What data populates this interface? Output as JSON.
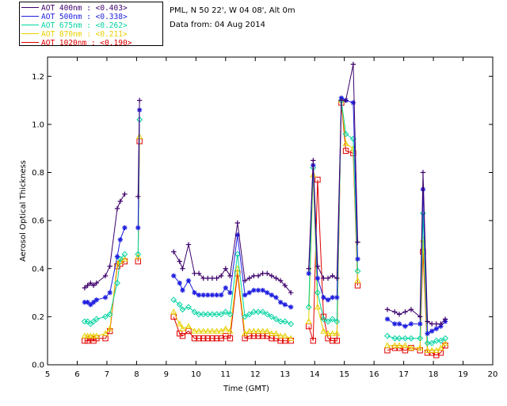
{
  "site_info": {
    "line1": "PML, N 50 22', W 04 08', Alt 0m",
    "line2": "Data from: 04 Aug 2014"
  },
  "legend": [
    {
      "label": "AOT  400nm : <0.403>",
      "color": "#3d006b"
    },
    {
      "label": "AOT  500nm : <0.338>",
      "color": "#1e1ee0"
    },
    {
      "label": "AOT  675nm : <0.262>",
      "color": "#00d3a0"
    },
    {
      "label": "AOT  870nm : <0.211>",
      "color": "#e6d000"
    },
    {
      "label": "AOT 1020nm : <0.190>",
      "color": "#e00000"
    }
  ],
  "chart_data": {
    "type": "scatter",
    "xlabel": "Time (GMT)",
    "ylabel": "Aerosol Optical Thickness",
    "xlim": [
      5,
      20
    ],
    "ylim": [
      0,
      1.28
    ],
    "xticks": [
      "5",
      "6",
      "7",
      "8",
      "9",
      "10",
      "11",
      "12",
      "13",
      "14",
      "15",
      "16",
      "17",
      "18",
      "19",
      "20"
    ],
    "yticks": [
      "0.0",
      "0.2",
      "0.4",
      "0.6",
      "0.8",
      "1.0",
      "1.2"
    ],
    "x": [
      6.25,
      6.35,
      6.45,
      6.55,
      6.65,
      6.95,
      7.1,
      7.35,
      7.45,
      7.6,
      8.05,
      8.1,
      9.25,
      9.45,
      9.55,
      9.75,
      9.95,
      10.1,
      10.25,
      10.4,
      10.55,
      10.7,
      10.85,
      11.0,
      11.15,
      11.4,
      11.65,
      11.8,
      11.95,
      12.1,
      12.25,
      12.4,
      12.55,
      12.7,
      12.85,
      13.0,
      13.2,
      13.8,
      13.95,
      14.1,
      14.3,
      14.45,
      14.6,
      14.75,
      14.9,
      15.05,
      15.3,
      15.45,
      16.45,
      16.7,
      16.85,
      17.05,
      17.25,
      17.55,
      17.65,
      17.8,
      17.95,
      18.1,
      18.25,
      18.4
    ],
    "series": [
      {
        "name": "AOT 400nm",
        "color": "#3d006b",
        "marker": "plus",
        "values": [
          0.32,
          0.33,
          0.34,
          0.33,
          0.34,
          0.37,
          0.41,
          0.65,
          0.68,
          0.71,
          0.7,
          1.1,
          0.47,
          0.43,
          0.4,
          0.5,
          0.38,
          0.38,
          0.36,
          0.36,
          0.36,
          0.36,
          0.37,
          0.4,
          0.37,
          0.59,
          0.35,
          0.36,
          0.37,
          0.37,
          0.38,
          0.38,
          0.37,
          0.36,
          0.35,
          0.33,
          0.3,
          0.4,
          0.85,
          0.41,
          0.36,
          0.36,
          0.37,
          0.36,
          1.1,
          1.1,
          1.25,
          0.51,
          0.23,
          0.22,
          0.21,
          0.22,
          0.23,
          0.2,
          0.8,
          0.18,
          0.17,
          0.17,
          0.17,
          0.19
        ]
      },
      {
        "name": "AOT 500nm",
        "color": "#1e1ee0",
        "marker": "star",
        "values": [
          0.26,
          0.26,
          0.25,
          0.26,
          0.27,
          0.28,
          0.3,
          0.45,
          0.52,
          0.57,
          0.57,
          1.06,
          0.37,
          0.34,
          0.31,
          0.35,
          0.3,
          0.29,
          0.29,
          0.29,
          0.29,
          0.29,
          0.29,
          0.32,
          0.3,
          0.54,
          0.29,
          0.3,
          0.31,
          0.31,
          0.31,
          0.3,
          0.29,
          0.28,
          0.26,
          0.25,
          0.24,
          0.38,
          0.83,
          0.36,
          0.28,
          0.27,
          0.28,
          0.28,
          1.11,
          1.1,
          1.09,
          0.44,
          0.19,
          0.17,
          0.17,
          0.16,
          0.17,
          0.17,
          0.73,
          0.13,
          0.14,
          0.15,
          0.16,
          0.18
        ]
      },
      {
        "name": "AOT 675nm",
        "color": "#00d3a0",
        "marker": "diamond",
        "values": [
          0.18,
          0.18,
          0.17,
          0.18,
          0.19,
          0.2,
          0.21,
          0.34,
          0.44,
          0.46,
          0.46,
          1.02,
          0.27,
          0.25,
          0.23,
          0.24,
          0.22,
          0.21,
          0.21,
          0.21,
          0.21,
          0.21,
          0.21,
          0.22,
          0.21,
          0.46,
          0.2,
          0.21,
          0.22,
          0.22,
          0.22,
          0.21,
          0.2,
          0.19,
          0.18,
          0.18,
          0.17,
          0.24,
          0.82,
          0.3,
          0.19,
          0.18,
          0.19,
          0.18,
          1.1,
          0.96,
          0.94,
          0.39,
          0.12,
          0.11,
          0.11,
          0.11,
          0.11,
          0.11,
          0.63,
          0.09,
          0.09,
          0.1,
          0.1,
          0.11
        ]
      },
      {
        "name": "AOT 870nm",
        "color": "#e6d000",
        "marker": "triangle",
        "values": [
          0.12,
          0.12,
          0.12,
          0.12,
          0.12,
          0.13,
          0.15,
          0.42,
          0.43,
          0.44,
          0.45,
          0.95,
          0.22,
          0.17,
          0.15,
          0.16,
          0.14,
          0.14,
          0.14,
          0.14,
          0.14,
          0.14,
          0.14,
          0.15,
          0.14,
          0.4,
          0.13,
          0.14,
          0.14,
          0.14,
          0.14,
          0.14,
          0.13,
          0.13,
          0.12,
          0.12,
          0.11,
          0.18,
          0.79,
          0.24,
          0.14,
          0.13,
          0.13,
          0.13,
          1.1,
          0.92,
          0.9,
          0.35,
          0.08,
          0.08,
          0.08,
          0.08,
          0.07,
          0.07,
          0.52,
          0.06,
          0.06,
          0.06,
          0.07,
          0.09
        ]
      },
      {
        "name": "AOT 1020nm",
        "color": "#e00000",
        "marker": "square",
        "values": [
          0.1,
          0.1,
          0.11,
          0.1,
          0.11,
          0.11,
          0.14,
          0.41,
          0.42,
          0.43,
          0.43,
          0.93,
          0.2,
          0.13,
          0.12,
          0.14,
          0.11,
          0.11,
          0.11,
          0.11,
          0.11,
          0.11,
          0.11,
          0.12,
          0.11,
          0.38,
          0.11,
          0.12,
          0.12,
          0.12,
          0.12,
          0.12,
          0.11,
          0.11,
          0.1,
          0.1,
          0.1,
          0.16,
          0.1,
          0.77,
          0.2,
          0.11,
          0.1,
          0.1,
          1.09,
          0.89,
          0.88,
          0.33,
          0.06,
          0.07,
          0.07,
          0.06,
          0.07,
          0.06,
          0.47,
          0.05,
          0.05,
          0.04,
          0.05,
          0.08
        ]
      }
    ]
  }
}
